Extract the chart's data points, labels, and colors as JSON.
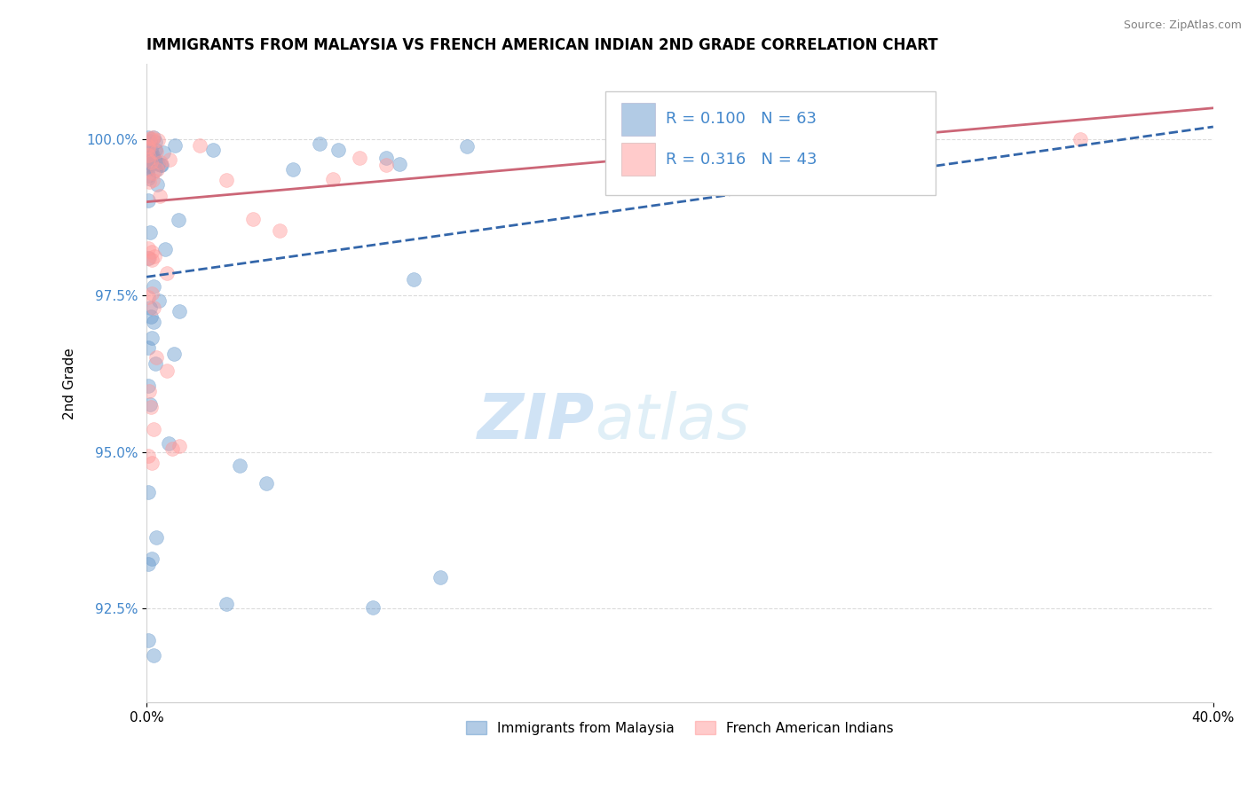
{
  "title": "IMMIGRANTS FROM MALAYSIA VS FRENCH AMERICAN INDIAN 2ND GRADE CORRELATION CHART",
  "source": "Source: ZipAtlas.com",
  "xlabel": "",
  "ylabel": "2nd Grade",
  "xlim": [
    0.0,
    40.0
  ],
  "ylim": [
    91.0,
    101.2
  ],
  "ytick_labels": [
    "92.5%",
    "95.0%",
    "97.5%",
    "100.0%"
  ],
  "ytick_values": [
    92.5,
    95.0,
    97.5,
    100.0
  ],
  "xtick_labels": [
    "0.0%",
    "40.0%"
  ],
  "xtick_values": [
    0.0,
    40.0
  ],
  "legend_label1": "Immigrants from Malaysia",
  "legend_label2": "French American Indians",
  "R1": 0.1,
  "N1": 63,
  "R2": 0.316,
  "N2": 43,
  "blue_color": "#6699CC",
  "pink_color": "#FF9999",
  "blue_line_color": "#3366AA",
  "pink_line_color": "#CC6677",
  "watermark_zip": "ZIP",
  "watermark_atlas": "atlas",
  "blue_trend_x0": 0.0,
  "blue_trend_y0": 97.8,
  "blue_trend_x1": 40.0,
  "blue_trend_y1": 100.2,
  "pink_trend_x0": 0.0,
  "pink_trend_y0": 99.0,
  "pink_trend_x1": 40.0,
  "pink_trend_y1": 100.5
}
